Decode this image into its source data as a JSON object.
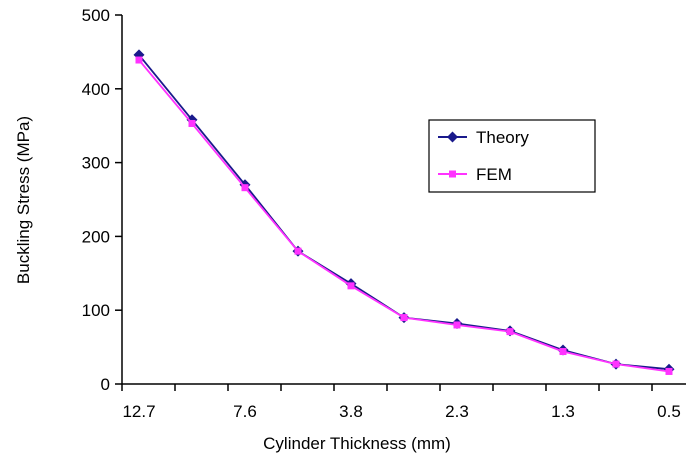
{
  "chart_data": {
    "type": "line",
    "xlabel": "Cylinder Thickness (mm)",
    "ylabel": "Buckling Stress (MPa)",
    "ylim": [
      0,
      500
    ],
    "yticks": [
      "0",
      "100",
      "200",
      "300",
      "400",
      "500"
    ],
    "x_tick_labels": [
      "12.7",
      "7.6",
      "3.8",
      "2.3",
      "1.3",
      "0.5"
    ],
    "categories": [
      "12.7",
      "",
      "7.6",
      "",
      "3.8",
      "",
      "2.3",
      "",
      "1.3",
      "",
      "0.5"
    ],
    "grid": false,
    "legend_position": "center-right",
    "series": [
      {
        "name": "Theory",
        "color": "#1a1a8c",
        "marker": "diamond",
        "values": [
          446,
          358,
          270,
          180,
          136,
          90,
          82,
          72,
          46,
          27,
          20
        ]
      },
      {
        "name": "FEM",
        "color": "#ff33ff",
        "marker": "square",
        "values": [
          439,
          353,
          266,
          180,
          133,
          90,
          80,
          71,
          44,
          27,
          17
        ]
      }
    ]
  }
}
